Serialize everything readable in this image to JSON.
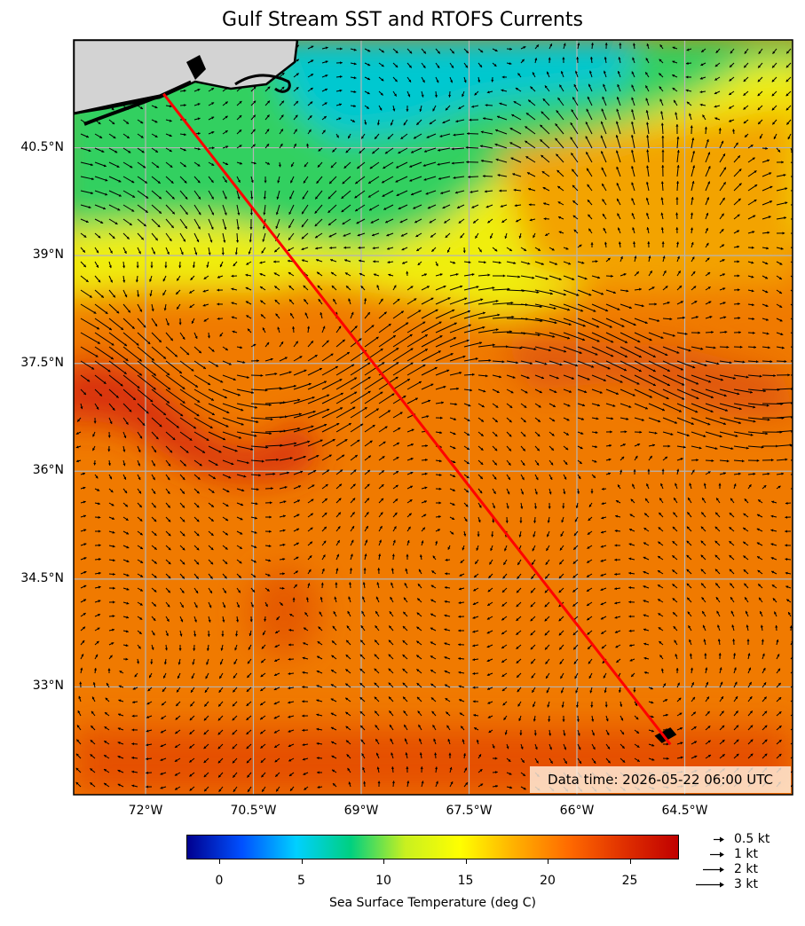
{
  "title": "Gulf Stream SST and RTOFS Currents",
  "timestamp": "Data time: 2026-05-22 06:00 UTC",
  "lat_labels": [
    "40.5°N",
    "39°N",
    "37.5°N",
    "36°N",
    "34.5°N",
    "33°N"
  ],
  "lon_labels": [
    "72°W",
    "70.5°W",
    "69°W",
    "67.5°W",
    "66°W",
    "64.5°W"
  ],
  "colorbar": {
    "label": "Sea Surface Temperature (deg C)",
    "ticks": [
      "0",
      "5",
      "10",
      "15",
      "20",
      "25"
    ],
    "range": [
      -2,
      28
    ],
    "colormap": [
      "#00008f",
      "#0050ff",
      "#00d0ff",
      "#00d080",
      "#c8f020",
      "#ffff00",
      "#ffb000",
      "#ff6a00",
      "#e03000",
      "#c00000"
    ]
  },
  "speed_legend": [
    {
      "label": "0.5 kt",
      "speed": 0.5
    },
    {
      "label": "1 kt",
      "speed": 1
    },
    {
      "label": "2 kt",
      "speed": 2
    },
    {
      "label": "3 kt",
      "speed": 3
    }
  ],
  "chart_data": {
    "type": "map",
    "region": {
      "lon": [
        -73.0,
        -63.0
      ],
      "lat": [
        31.5,
        42.0
      ]
    },
    "track": {
      "color": "#ff0000",
      "points": [
        {
          "lon": -71.75,
          "lat": 41.25
        },
        {
          "lon": -64.7,
          "lat": 32.2
        }
      ]
    },
    "land_color": "#d3d3d3",
    "gridlines": true
  }
}
